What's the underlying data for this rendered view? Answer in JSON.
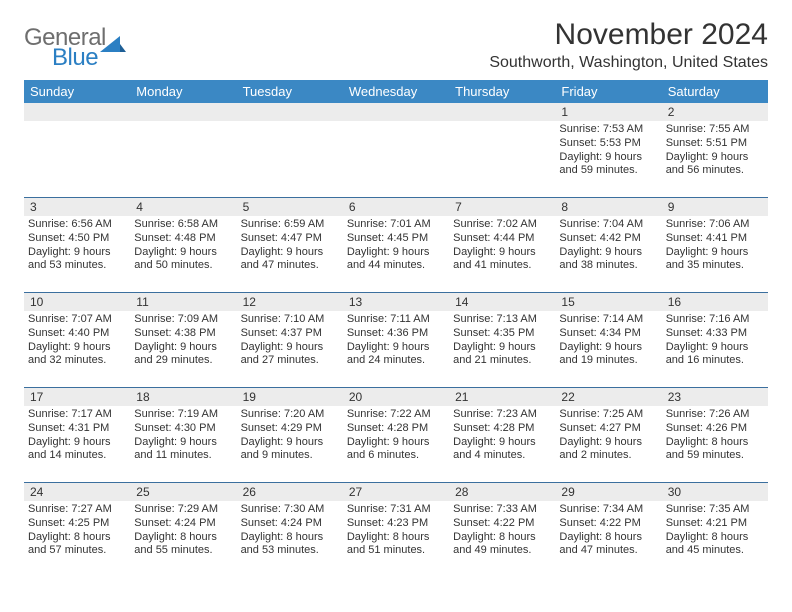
{
  "brand": {
    "general": "General",
    "blue": "Blue"
  },
  "header": {
    "month_title": "November 2024",
    "location": "Southworth, Washington, United States"
  },
  "colors": {
    "header_bar": "#3b88c4",
    "week_border": "#3b6f9e",
    "daynum_bg": "#ececec",
    "text": "#333333",
    "logo_gray": "#6e6e6e",
    "logo_blue": "#2b7fc3",
    "white": "#ffffff"
  },
  "weekdays": [
    "Sunday",
    "Monday",
    "Tuesday",
    "Wednesday",
    "Thursday",
    "Friday",
    "Saturday"
  ],
  "weeks": [
    {
      "nums": [
        "",
        "",
        "",
        "",
        "",
        "1",
        "2"
      ],
      "cells": [
        null,
        null,
        null,
        null,
        null,
        {
          "sunrise": "Sunrise: 7:53 AM",
          "sunset": "Sunset: 5:53 PM",
          "daylight1": "Daylight: 9 hours",
          "daylight2": "and 59 minutes."
        },
        {
          "sunrise": "Sunrise: 7:55 AM",
          "sunset": "Sunset: 5:51 PM",
          "daylight1": "Daylight: 9 hours",
          "daylight2": "and 56 minutes."
        }
      ]
    },
    {
      "nums": [
        "3",
        "4",
        "5",
        "6",
        "7",
        "8",
        "9"
      ],
      "cells": [
        {
          "sunrise": "Sunrise: 6:56 AM",
          "sunset": "Sunset: 4:50 PM",
          "daylight1": "Daylight: 9 hours",
          "daylight2": "and 53 minutes."
        },
        {
          "sunrise": "Sunrise: 6:58 AM",
          "sunset": "Sunset: 4:48 PM",
          "daylight1": "Daylight: 9 hours",
          "daylight2": "and 50 minutes."
        },
        {
          "sunrise": "Sunrise: 6:59 AM",
          "sunset": "Sunset: 4:47 PM",
          "daylight1": "Daylight: 9 hours",
          "daylight2": "and 47 minutes."
        },
        {
          "sunrise": "Sunrise: 7:01 AM",
          "sunset": "Sunset: 4:45 PM",
          "daylight1": "Daylight: 9 hours",
          "daylight2": "and 44 minutes."
        },
        {
          "sunrise": "Sunrise: 7:02 AM",
          "sunset": "Sunset: 4:44 PM",
          "daylight1": "Daylight: 9 hours",
          "daylight2": "and 41 minutes."
        },
        {
          "sunrise": "Sunrise: 7:04 AM",
          "sunset": "Sunset: 4:42 PM",
          "daylight1": "Daylight: 9 hours",
          "daylight2": "and 38 minutes."
        },
        {
          "sunrise": "Sunrise: 7:06 AM",
          "sunset": "Sunset: 4:41 PM",
          "daylight1": "Daylight: 9 hours",
          "daylight2": "and 35 minutes."
        }
      ]
    },
    {
      "nums": [
        "10",
        "11",
        "12",
        "13",
        "14",
        "15",
        "16"
      ],
      "cells": [
        {
          "sunrise": "Sunrise: 7:07 AM",
          "sunset": "Sunset: 4:40 PM",
          "daylight1": "Daylight: 9 hours",
          "daylight2": "and 32 minutes."
        },
        {
          "sunrise": "Sunrise: 7:09 AM",
          "sunset": "Sunset: 4:38 PM",
          "daylight1": "Daylight: 9 hours",
          "daylight2": "and 29 minutes."
        },
        {
          "sunrise": "Sunrise: 7:10 AM",
          "sunset": "Sunset: 4:37 PM",
          "daylight1": "Daylight: 9 hours",
          "daylight2": "and 27 minutes."
        },
        {
          "sunrise": "Sunrise: 7:11 AM",
          "sunset": "Sunset: 4:36 PM",
          "daylight1": "Daylight: 9 hours",
          "daylight2": "and 24 minutes."
        },
        {
          "sunrise": "Sunrise: 7:13 AM",
          "sunset": "Sunset: 4:35 PM",
          "daylight1": "Daylight: 9 hours",
          "daylight2": "and 21 minutes."
        },
        {
          "sunrise": "Sunrise: 7:14 AM",
          "sunset": "Sunset: 4:34 PM",
          "daylight1": "Daylight: 9 hours",
          "daylight2": "and 19 minutes."
        },
        {
          "sunrise": "Sunrise: 7:16 AM",
          "sunset": "Sunset: 4:33 PM",
          "daylight1": "Daylight: 9 hours",
          "daylight2": "and 16 minutes."
        }
      ]
    },
    {
      "nums": [
        "17",
        "18",
        "19",
        "20",
        "21",
        "22",
        "23"
      ],
      "cells": [
        {
          "sunrise": "Sunrise: 7:17 AM",
          "sunset": "Sunset: 4:31 PM",
          "daylight1": "Daylight: 9 hours",
          "daylight2": "and 14 minutes."
        },
        {
          "sunrise": "Sunrise: 7:19 AM",
          "sunset": "Sunset: 4:30 PM",
          "daylight1": "Daylight: 9 hours",
          "daylight2": "and 11 minutes."
        },
        {
          "sunrise": "Sunrise: 7:20 AM",
          "sunset": "Sunset: 4:29 PM",
          "daylight1": "Daylight: 9 hours",
          "daylight2": "and 9 minutes."
        },
        {
          "sunrise": "Sunrise: 7:22 AM",
          "sunset": "Sunset: 4:28 PM",
          "daylight1": "Daylight: 9 hours",
          "daylight2": "and 6 minutes."
        },
        {
          "sunrise": "Sunrise: 7:23 AM",
          "sunset": "Sunset: 4:28 PM",
          "daylight1": "Daylight: 9 hours",
          "daylight2": "and 4 minutes."
        },
        {
          "sunrise": "Sunrise: 7:25 AM",
          "sunset": "Sunset: 4:27 PM",
          "daylight1": "Daylight: 9 hours",
          "daylight2": "and 2 minutes."
        },
        {
          "sunrise": "Sunrise: 7:26 AM",
          "sunset": "Sunset: 4:26 PM",
          "daylight1": "Daylight: 8 hours",
          "daylight2": "and 59 minutes."
        }
      ]
    },
    {
      "nums": [
        "24",
        "25",
        "26",
        "27",
        "28",
        "29",
        "30"
      ],
      "cells": [
        {
          "sunrise": "Sunrise: 7:27 AM",
          "sunset": "Sunset: 4:25 PM",
          "daylight1": "Daylight: 8 hours",
          "daylight2": "and 57 minutes."
        },
        {
          "sunrise": "Sunrise: 7:29 AM",
          "sunset": "Sunset: 4:24 PM",
          "daylight1": "Daylight: 8 hours",
          "daylight2": "and 55 minutes."
        },
        {
          "sunrise": "Sunrise: 7:30 AM",
          "sunset": "Sunset: 4:24 PM",
          "daylight1": "Daylight: 8 hours",
          "daylight2": "and 53 minutes."
        },
        {
          "sunrise": "Sunrise: 7:31 AM",
          "sunset": "Sunset: 4:23 PM",
          "daylight1": "Daylight: 8 hours",
          "daylight2": "and 51 minutes."
        },
        {
          "sunrise": "Sunrise: 7:33 AM",
          "sunset": "Sunset: 4:22 PM",
          "daylight1": "Daylight: 8 hours",
          "daylight2": "and 49 minutes."
        },
        {
          "sunrise": "Sunrise: 7:34 AM",
          "sunset": "Sunset: 4:22 PM",
          "daylight1": "Daylight: 8 hours",
          "daylight2": "and 47 minutes."
        },
        {
          "sunrise": "Sunrise: 7:35 AM",
          "sunset": "Sunset: 4:21 PM",
          "daylight1": "Daylight: 8 hours",
          "daylight2": "and 45 minutes."
        }
      ]
    }
  ]
}
